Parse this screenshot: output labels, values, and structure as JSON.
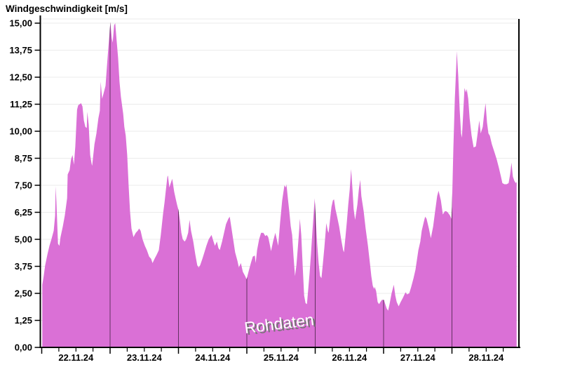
{
  "chart": {
    "title": "Windgeschwindigkeit [m/s]"
  },
  "chart_data": {
    "type": "area",
    "title": "Windgeschwindigkeit [m/s]",
    "ylabel": "Windgeschwindigkeit [m/s]",
    "xlabel": "",
    "watermark": "Rohdaten",
    "x_unit": "hours since 22.11.24 00:00",
    "x_tick_labels": [
      "22.11.24",
      "23.11.24",
      "24.11.24",
      "25.11.24",
      "26.11.24",
      "27.11.24",
      "28.11.24"
    ],
    "x_day_tick_hours": [
      0,
      24,
      48,
      72,
      96,
      120,
      144
    ],
    "x_label_center_hours": [
      12,
      36,
      60,
      84,
      108,
      132,
      156
    ],
    "minor_tick_interval_hours": 6,
    "xlim_hours": [
      0,
      167.5
    ],
    "y_ticks": [
      0,
      1.25,
      2.5,
      3.75,
      5,
      6.25,
      7.5,
      8.75,
      10,
      11.25,
      12.5,
      13.75,
      15
    ],
    "y_tick_labels": [
      "0,00",
      "1,25",
      "2,50",
      "3,75",
      "5,00",
      "6,25",
      "7,50",
      "8,75",
      "10,00",
      "11,25",
      "12,50",
      "13,75",
      "15,00"
    ],
    "ylim": [
      0,
      15.2
    ],
    "grid": {
      "horizontal": true,
      "vertical_day_lines_clipped_to_area": true
    },
    "legend": "none",
    "day_line_opacity": 0.55,
    "colors": {
      "area_fill": "#da70d6",
      "day_line": "#000000",
      "h_grid": "#ebebeb",
      "axis": "#000000",
      "tick_label": "#000000",
      "watermark_fill": "#ffffff",
      "watermark_shadow": "#757575"
    },
    "series": [
      {
        "name": "Rohdaten",
        "x_hours": [
          0.2,
          0.7,
          1.2,
          2.0,
          2.7,
          3.4,
          4.2,
          4.7,
          4.9,
          5.2,
          5.7,
          6.2,
          6.6,
          7.4,
          8.1,
          8.9,
          9.1,
          9.8,
          10.3,
          10.8,
          11.3,
          11.8,
          12.1,
          12.4,
          12.8,
          13.3,
          13.8,
          14.3,
          14.8,
          15.3,
          15.8,
          16.0,
          16.5,
          17.0,
          17.5,
          17.7,
          18.5,
          19.2,
          19.9,
          20.4,
          20.7,
          21.2,
          21.7,
          22.4,
          22.9,
          23.4,
          23.9,
          24.1,
          24.6,
          24.9,
          25.4,
          25.8,
          26.3,
          26.8,
          27.3,
          27.8,
          28.6,
          29.0,
          29.5,
          30.0,
          30.5,
          31.0,
          31.5,
          32.2,
          33.0,
          33.7,
          34.2,
          34.7,
          35.4,
          36.2,
          36.9,
          37.7,
          38.4,
          38.9,
          39.6,
          40.4,
          41.1,
          41.8,
          42.6,
          43.1,
          43.6,
          44.1,
          44.3,
          44.8,
          45.3,
          45.8,
          46.5,
          47.0,
          47.5,
          48.0,
          48.5,
          49.0,
          49.5,
          50.2,
          50.7,
          51.4,
          51.9,
          52.4,
          53.2,
          53.9,
          54.6,
          55.1,
          55.6,
          56.4,
          57.1,
          57.8,
          58.6,
          59.1,
          59.6,
          60.3,
          60.8,
          61.5,
          62.0,
          62.5,
          63.3,
          64.0,
          64.7,
          65.5,
          66.0,
          66.5,
          67.2,
          67.9,
          68.7,
          69.2,
          69.9,
          70.6,
          71.4,
          71.9,
          72.6,
          73.4,
          74.1,
          74.8,
          75.1,
          75.6,
          76.3,
          77.0,
          77.8,
          78.5,
          79.0,
          79.5,
          80.0,
          80.5,
          81.2,
          82.0,
          82.5,
          83.0,
          83.7,
          84.4,
          85.2,
          85.7,
          85.9,
          86.4,
          86.9,
          87.4,
          87.9,
          88.4,
          88.9,
          89.4,
          89.9,
          90.4,
          90.6,
          91.1,
          91.6,
          92.1,
          92.6,
          93.1,
          93.5,
          94.0,
          94.5,
          95.0,
          95.5,
          95.8,
          96.2,
          96.7,
          97.2,
          97.7,
          98.2,
          98.7,
          99.2,
          99.7,
          99.9,
          100.4,
          100.7,
          101.2,
          101.7,
          102.2,
          102.6,
          103.1,
          103.6,
          104.4,
          105.1,
          105.8,
          106.1,
          106.6,
          107.1,
          107.6,
          108.1,
          108.6,
          109.1,
          109.5,
          110.0,
          110.8,
          111.3,
          111.8,
          112.2,
          113.0,
          113.7,
          114.5,
          115.2,
          115.7,
          116.2,
          116.7,
          116.9,
          117.4,
          117.9,
          118.4,
          118.9,
          119.4,
          120.1,
          120.6,
          121.1,
          121.6,
          122.1,
          122.8,
          123.6,
          124.1,
          124.6,
          125.3,
          126.0,
          126.8,
          127.5,
          127.8,
          128.2,
          129.0,
          129.7,
          130.5,
          131.2,
          132.2,
          132.9,
          133.4,
          134.2,
          134.6,
          135.1,
          135.9,
          136.6,
          137.4,
          138.1,
          138.8,
          139.3,
          140.1,
          140.8,
          141.5,
          142.0,
          142.5,
          143.3,
          143.8,
          144.0,
          144.5,
          145.0,
          145.5,
          145.7,
          146.2,
          146.7,
          147.2,
          147.5,
          148.0,
          148.4,
          148.9,
          149.2,
          149.7,
          150.2,
          150.9,
          151.6,
          152.4,
          152.9,
          153.6,
          154.1,
          154.8,
          155.3,
          155.8,
          156.3,
          156.8,
          157.3,
          158.0,
          159.0,
          159.7,
          160.5,
          161.2,
          161.7,
          162.4,
          163.2,
          163.9,
          164.4,
          164.9,
          165.4,
          165.9,
          166.4,
          166.7
        ],
        "values": [
          2.9,
          3.3,
          3.8,
          4.3,
          4.7,
          5.0,
          5.4,
          6.1,
          7.45,
          6.6,
          4.8,
          4.7,
          5.1,
          5.6,
          6.1,
          6.9,
          8.0,
          8.2,
          8.7,
          8.9,
          8.45,
          9.3,
          10.2,
          11.0,
          11.2,
          11.25,
          11.3,
          11.15,
          10.5,
          10.2,
          10.15,
          10.9,
          10.3,
          8.9,
          8.5,
          8.4,
          9.4,
          9.9,
          10.6,
          10.95,
          12.3,
          11.5,
          11.75,
          12.1,
          13.0,
          13.9,
          14.7,
          15.05,
          14.3,
          14.1,
          14.9,
          15.0,
          14.2,
          13.4,
          12.3,
          11.6,
          10.8,
          10.2,
          9.8,
          8.9,
          7.5,
          6.3,
          5.5,
          5.1,
          5.3,
          5.4,
          5.5,
          5.4,
          5.0,
          4.7,
          4.5,
          4.2,
          4.1,
          3.9,
          4.1,
          4.3,
          4.5,
          5.2,
          6.2,
          6.7,
          7.3,
          7.9,
          7.95,
          7.4,
          7.6,
          7.8,
          7.2,
          6.9,
          6.6,
          6.35,
          5.9,
          5.3,
          5.0,
          4.9,
          5.0,
          5.3,
          5.9,
          5.4,
          4.9,
          4.3,
          3.8,
          3.7,
          3.8,
          4.1,
          4.4,
          4.7,
          5.0,
          5.1,
          5.2,
          4.9,
          4.7,
          4.9,
          4.6,
          4.5,
          4.9,
          5.3,
          5.7,
          5.95,
          6.05,
          5.6,
          5.0,
          4.4,
          4.0,
          3.7,
          3.9,
          3.5,
          3.3,
          3.15,
          3.5,
          3.9,
          4.2,
          4.25,
          3.9,
          4.5,
          5.0,
          5.3,
          5.3,
          5.15,
          5.2,
          5.1,
          4.8,
          4.45,
          4.9,
          5.3,
          5.0,
          4.7,
          5.8,
          6.8,
          7.5,
          7.4,
          7.55,
          6.9,
          6.3,
          5.6,
          5.2,
          4.2,
          3.3,
          3.8,
          4.6,
          5.5,
          5.95,
          5.2,
          3.8,
          2.4,
          2.05,
          2.0,
          2.6,
          3.4,
          4.3,
          5.3,
          6.3,
          6.9,
          6.0,
          4.8,
          3.9,
          3.3,
          3.2,
          3.9,
          4.6,
          5.4,
          5.75,
          5.4,
          5.3,
          5.9,
          6.5,
          6.8,
          6.85,
          6.4,
          6.1,
          5.6,
          5.0,
          4.5,
          4.4,
          5.1,
          5.8,
          6.6,
          7.3,
          8.25,
          7.3,
          6.4,
          5.9,
          6.6,
          7.3,
          7.75,
          7.0,
          6.3,
          5.5,
          4.7,
          3.9,
          3.3,
          2.85,
          2.7,
          2.8,
          2.6,
          2.1,
          2.0,
          2.1,
          2.2,
          2.2,
          2.0,
          1.8,
          1.7,
          2.0,
          2.5,
          2.9,
          2.4,
          2.1,
          1.9,
          2.1,
          2.3,
          2.5,
          2.55,
          2.45,
          2.5,
          2.8,
          3.2,
          3.6,
          4.5,
          4.9,
          5.4,
          5.85,
          6.05,
          5.95,
          5.5,
          5.05,
          5.6,
          6.3,
          7.0,
          7.25,
          6.8,
          6.15,
          6.3,
          6.3,
          6.25,
          6.1,
          5.95,
          6.5,
          9.2,
          11.5,
          13.0,
          13.7,
          12.6,
          11.0,
          9.9,
          9.7,
          11.0,
          12.0,
          11.8,
          11.95,
          11.5,
          10.6,
          9.8,
          9.25,
          9.3,
          9.8,
          10.5,
          9.9,
          10.2,
          10.8,
          11.3,
          10.4,
          9.9,
          9.8,
          9.4,
          9.0,
          8.7,
          8.3,
          7.9,
          7.6,
          7.55,
          7.55,
          7.6,
          8.0,
          8.55,
          7.9,
          7.7,
          7.6,
          7.65
        ]
      }
    ]
  }
}
